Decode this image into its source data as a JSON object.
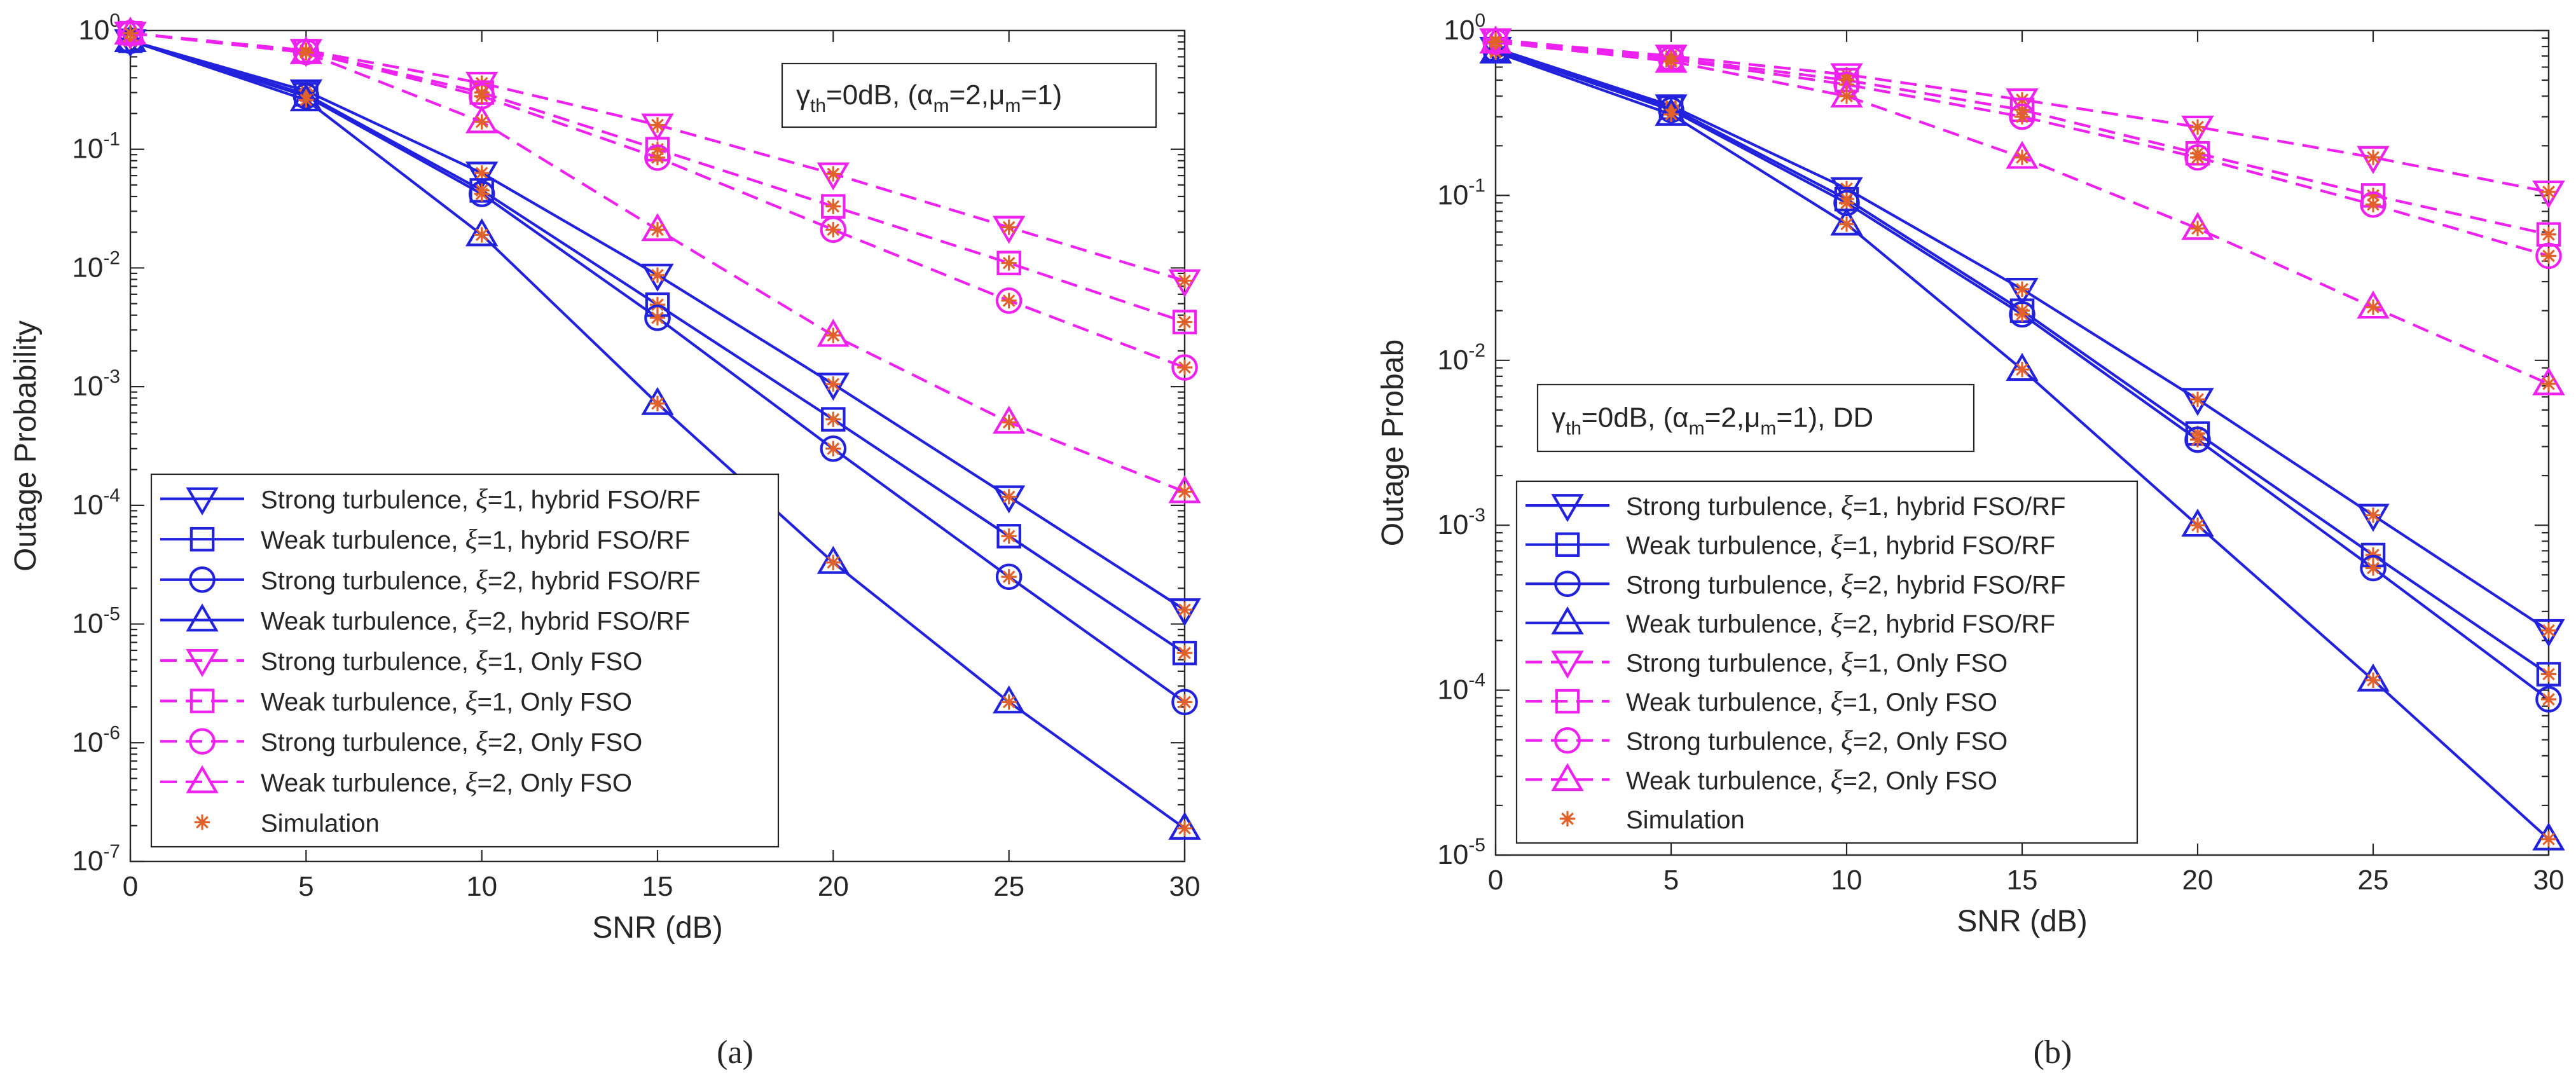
{
  "chart_data": [
    {
      "type": "line",
      "panel_label": "(a)",
      "xlabel": "SNR (dB)",
      "ylabel": "Outage Probability",
      "yscale": "log",
      "xlim": [
        0,
        30
      ],
      "ylim": [
        1e-07,
        1
      ],
      "x_ticks": [
        "0",
        "5",
        "10",
        "15",
        "20",
        "25",
        "30"
      ],
      "y_ticks": [
        {
          "base": "10",
          "exp": "0"
        },
        {
          "base": "10",
          "exp": "-1"
        },
        {
          "base": "10",
          "exp": "-2"
        },
        {
          "base": "10",
          "exp": "-3"
        },
        {
          "base": "10",
          "exp": "-4"
        },
        {
          "base": "10",
          "exp": "-5"
        },
        {
          "base": "10",
          "exp": "-6"
        },
        {
          "base": "10",
          "exp": "-7"
        }
      ],
      "annotation": {
        "gamma": "γ",
        "gamma_sub": "th",
        "mid": "=0dB, (α",
        "alpha_sub": "m",
        "mid2": "=2,μ",
        "mu_sub": "m",
        "tail": "=1)"
      },
      "x": [
        0,
        5,
        10,
        15,
        20,
        25,
        30
      ],
      "series": [
        {
          "name": "Strong turbulence, ξ=1, hybrid FSO/RF",
          "label_pre": "Strong turbulence, ",
          "label_xi": "ξ",
          "label_post": "=1, hybrid FSO/RF",
          "color": "#2222dd",
          "dash": "solid",
          "marker": "triangle-down",
          "values": [
            0.82,
            0.31,
            0.063,
            0.0087,
            0.00105,
            0.000118,
            1.32e-05
          ]
        },
        {
          "name": "Weak turbulence, ξ=1, hybrid FSO/RF",
          "label_pre": "Weak turbulence, ",
          "label_xi": "ξ",
          "label_post": "=1, hybrid FSO/RF",
          "color": "#2222dd",
          "dash": "solid",
          "marker": "square",
          "values": [
            0.82,
            0.29,
            0.045,
            0.0049,
            0.00053,
            5.5e-05,
            5.7e-06
          ]
        },
        {
          "name": "Strong turbulence, ξ=2, hybrid FSO/RF",
          "label_pre": "Strong turbulence, ",
          "label_xi": "ξ",
          "label_post": "=2, hybrid FSO/RF",
          "color": "#2222dd",
          "dash": "solid",
          "marker": "circle",
          "values": [
            0.82,
            0.28,
            0.042,
            0.0038,
            0.0003,
            2.5e-05,
            2.2e-06
          ]
        },
        {
          "name": "Weak turbulence, ξ=2, hybrid FSO/RF",
          "label_pre": "Weak turbulence, ",
          "label_xi": "ξ",
          "label_post": "=2,  hybrid FSO/RF",
          "color": "#2222dd",
          "dash": "solid",
          "marker": "triangle-up",
          "values": [
            0.82,
            0.26,
            0.019,
            0.00072,
            3.3e-05,
            2.2e-06,
            1.9e-07
          ]
        },
        {
          "name": "Strong turbulence, ξ=1, Only FSO",
          "label_pre": "Strong turbulence, ",
          "label_xi": "ξ",
          "label_post": "=1, Only FSO",
          "color": "#ee22ee",
          "dash": "dashed",
          "marker": "triangle-down",
          "values": [
            0.95,
            0.68,
            0.36,
            0.16,
            0.062,
            0.022,
            0.0078
          ]
        },
        {
          "name": "Weak turbulence, ξ=1, Only FSO",
          "label_pre": "Weak turbulence, ",
          "label_xi": "ξ",
          "label_post": "=1, Only FSO",
          "color": "#ee22ee",
          "dash": "dashed",
          "marker": "square",
          "values": [
            0.95,
            0.67,
            0.3,
            0.1,
            0.033,
            0.011,
            0.0035
          ]
        },
        {
          "name": "Strong turbulence, ξ=2, Only FSO",
          "label_pre": "Strong turbulence, ",
          "label_xi": "ξ",
          "label_post": "=2, Only FSO",
          "color": "#ee22ee",
          "dash": "dashed",
          "marker": "circle",
          "values": [
            0.95,
            0.66,
            0.28,
            0.085,
            0.021,
            0.0053,
            0.00145
          ]
        },
        {
          "name": "Weak turbulence, ξ=2, Only FSO",
          "label_pre": "Weak turbulence, ",
          "label_xi": "ξ",
          "label_post": "=2,  Only FSO",
          "color": "#ee22ee",
          "dash": "dashed",
          "marker": "triangle-up",
          "values": [
            0.95,
            0.65,
            0.17,
            0.021,
            0.0027,
            0.0005,
            0.00013
          ]
        }
      ],
      "simulation": {
        "name": "Simulation",
        "color": "#e2602a",
        "marker": "asterisk"
      }
    },
    {
      "type": "line",
      "panel_label": "(b)",
      "xlabel": "SNR (dB)",
      "ylabel": "Outage Probab",
      "yscale": "log",
      "xlim": [
        0,
        30
      ],
      "ylim": [
        1e-05,
        1
      ],
      "x_ticks": [
        "0",
        "5",
        "10",
        "15",
        "20",
        "25",
        "30"
      ],
      "y_ticks": [
        {
          "base": "10",
          "exp": "0"
        },
        {
          "base": "10",
          "exp": "-1"
        },
        {
          "base": "10",
          "exp": "-2"
        },
        {
          "base": "10",
          "exp": "-3"
        },
        {
          "base": "10",
          "exp": "-4"
        },
        {
          "base": "10",
          "exp": "-5"
        }
      ],
      "annotation": {
        "gamma": "γ",
        "gamma_sub": "th",
        "mid": "=0dB, (α",
        "alpha_sub": "m",
        "mid2": "=2,μ",
        "mu_sub": "m",
        "tail": "=1), DD"
      },
      "x": [
        0,
        5,
        10,
        15,
        20,
        25,
        30
      ],
      "series": [
        {
          "name": "Strong turbulence, ξ=1, hybrid FSO/RF",
          "label_pre": "Strong turbulence, ",
          "label_xi": "ξ",
          "label_post": "=1, hybrid FSO/RF",
          "color": "#2222dd",
          "dash": "solid",
          "marker": "triangle-down",
          "values": [
            0.78,
            0.35,
            0.11,
            0.027,
            0.0058,
            0.00115,
            0.00023
          ]
        },
        {
          "name": "Weak turbulence, ξ=1, hybrid FSO/RF",
          "label_pre": "Weak turbulence, ",
          "label_xi": "ξ",
          "label_post": "=1, hybrid FSO/RF",
          "color": "#2222dd",
          "dash": "solid",
          "marker": "square",
          "values": [
            0.77,
            0.34,
            0.095,
            0.02,
            0.0036,
            0.00066,
            0.000125
          ]
        },
        {
          "name": "Strong turbulence, ξ=2, hybrid FSO/RF",
          "label_pre": "Strong turbulence, ",
          "label_xi": "ξ",
          "label_post": "=2, hybrid FSO/RF",
          "color": "#2222dd",
          "dash": "solid",
          "marker": "circle",
          "values": [
            0.76,
            0.33,
            0.09,
            0.019,
            0.0033,
            0.00055,
            8.8e-05
          ]
        },
        {
          "name": "Weak turbulence, ξ=2, hybrid FSO/RF",
          "label_pre": "Weak turbulence, ",
          "label_xi": "ξ",
          "label_post": "=2,  hybrid FSO/RF",
          "color": "#2222dd",
          "dash": "solid",
          "marker": "triangle-up",
          "values": [
            0.74,
            0.31,
            0.067,
            0.0088,
            0.001,
            0.000115,
            1.25e-05
          ]
        },
        {
          "name": "Strong turbulence, ξ=1, Only FSO",
          "label_pre": "Strong turbulence, ",
          "label_xi": "ξ",
          "label_post": "=1, Only FSO",
          "color": "#ee22ee",
          "dash": "dashed",
          "marker": "triangle-down",
          "values": [
            0.88,
            0.7,
            0.54,
            0.38,
            0.26,
            0.17,
            0.105
          ]
        },
        {
          "name": "Weak turbulence, ξ=1, Only FSO",
          "label_pre": "Weak turbulence, ",
          "label_xi": "ξ",
          "label_post": "=1, Only FSO",
          "color": "#ee22ee",
          "dash": "dashed",
          "marker": "square",
          "values": [
            0.87,
            0.68,
            0.5,
            0.33,
            0.18,
            0.1,
            0.058
          ]
        },
        {
          "name": "Strong turbulence, ξ=2, Only FSO",
          "label_pre": "Strong turbulence, ",
          "label_xi": "ξ",
          "label_post": "=2, Only FSO",
          "color": "#ee22ee",
          "dash": "dashed",
          "marker": "circle",
          "values": [
            0.86,
            0.67,
            0.47,
            0.3,
            0.17,
            0.088,
            0.043
          ]
        },
        {
          "name": "Weak turbulence, ξ=2, Only FSO",
          "label_pre": "Weak turbulence, ",
          "label_xi": "ξ",
          "label_post": "=2,  Only FSO",
          "color": "#ee22ee",
          "dash": "dashed",
          "marker": "triangle-up",
          "values": [
            0.85,
            0.65,
            0.4,
            0.17,
            0.063,
            0.021,
            0.0072
          ]
        }
      ],
      "simulation": {
        "name": "Simulation",
        "color": "#e2602a",
        "marker": "asterisk"
      }
    }
  ]
}
